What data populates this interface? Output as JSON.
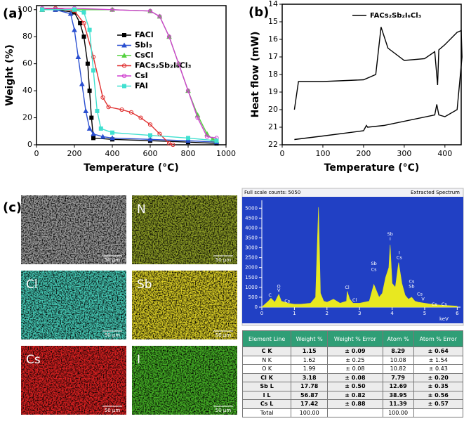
{
  "chart_data": [
    {
      "type": "line",
      "panel": "(a)",
      "xlabel": "Temperature (°C)",
      "ylabel": "Weight (%)",
      "xlim": [
        0,
        1000
      ],
      "xticks": [
        0,
        200,
        400,
        600,
        800,
        1000
      ],
      "ylim": [
        0,
        103
      ],
      "yticks": [
        0,
        20,
        40,
        60,
        80,
        100
      ],
      "series": [
        {
          "name": "FACl",
          "color": "#000000",
          "marker": "square",
          "x": [
            30,
            100,
            200,
            230,
            250,
            270,
            280,
            290,
            300,
            400,
            600,
            800,
            950
          ],
          "values": [
            100,
            100,
            98,
            90,
            80,
            60,
            40,
            20,
            5,
            4,
            3,
            2,
            1
          ]
        },
        {
          "name": "SbI₃",
          "color": "#2a4fd0",
          "marker": "triangle",
          "x": [
            30,
            100,
            180,
            200,
            220,
            240,
            260,
            280,
            300,
            350,
            400,
            600,
            800,
            950
          ],
          "values": [
            100,
            100,
            97,
            85,
            65,
            45,
            25,
            12,
            8,
            6,
            5,
            4,
            3,
            2
          ]
        },
        {
          "name": "CsCl",
          "color": "#55d040",
          "marker": "triangle",
          "x": [
            30,
            200,
            400,
            600,
            650,
            700,
            750,
            800,
            850,
            900,
            930,
            950
          ],
          "values": [
            100,
            100,
            100,
            99,
            95,
            80,
            60,
            40,
            22,
            8,
            4,
            3
          ]
        },
        {
          "name": "FACs₂Sb₂I₆Cl₃",
          "color": "#e03030",
          "marker": "circle",
          "x": [
            30,
            100,
            200,
            250,
            300,
            350,
            380,
            450,
            500,
            550,
            600,
            650,
            700,
            720
          ],
          "values": [
            100,
            101,
            99,
            90,
            65,
            35,
            28,
            26,
            24,
            20,
            15,
            8,
            1,
            0
          ]
        },
        {
          "name": "CsI",
          "color": "#d040d0",
          "marker": "circle",
          "x": [
            30,
            200,
            400,
            600,
            650,
            700,
            750,
            800,
            850,
            900,
            950
          ],
          "values": [
            101,
            101,
            100,
            99,
            95,
            80,
            60,
            40,
            20,
            6,
            5
          ]
        },
        {
          "name": "FAI",
          "color": "#40e0d0",
          "marker": "square",
          "x": [
            30,
            200,
            250,
            280,
            300,
            320,
            340,
            400,
            600,
            800,
            950
          ],
          "values": [
            100,
            100,
            98,
            85,
            55,
            25,
            12,
            9,
            7,
            5,
            3
          ]
        }
      ]
    },
    {
      "type": "line",
      "panel": "(b)",
      "xlabel": "Temperature (°C)",
      "ylabel": "Heat flow (mW)",
      "xlim": [
        0,
        440
      ],
      "xticks": [
        0,
        100,
        200,
        300,
        400
      ],
      "ylim": [
        22,
        14
      ],
      "yticks": [
        14,
        15,
        16,
        17,
        18,
        19,
        20,
        21,
        22
      ],
      "series": [
        {
          "name": "FACs₂Sb₂I₆Cl₃",
          "color": "#000000",
          "x": [
            30,
            40,
            100,
            200,
            230,
            243,
            260,
            300,
            350,
            375,
            382,
            385,
            400,
            430,
            440,
            442,
            430,
            400,
            385,
            380,
            375,
            250,
            210,
            207,
            200,
            100,
            30
          ],
          "values": [
            20,
            18.4,
            18.4,
            18.3,
            18.0,
            15.3,
            16.5,
            17.2,
            17.1,
            16.7,
            18.6,
            16.6,
            16.3,
            15.6,
            15.5,
            17,
            20,
            20.4,
            20.3,
            19.7,
            20.3,
            20.9,
            21.0,
            20.9,
            21.2,
            21.5,
            21.7
          ]
        }
      ]
    },
    {
      "type": "area",
      "title": "Full scale counts: 5050",
      "subtitle": "Extracted Spectrum",
      "xlabel": "keV",
      "color": "#e8e820",
      "xlim": [
        0,
        6.1
      ],
      "xticks": [
        0,
        1,
        2,
        3,
        4,
        5,
        6
      ],
      "ylim": [
        0,
        5400
      ],
      "yticks": [
        0,
        500,
        1000,
        1500,
        2000,
        2500,
        3000,
        3500,
        4000,
        4500,
        5000
      ],
      "x": [
        0,
        0.2,
        0.28,
        0.4,
        0.52,
        0.6,
        0.8,
        1.0,
        1.2,
        1.5,
        1.65,
        1.74,
        1.8,
        1.9,
        2.0,
        2.2,
        2.4,
        2.6,
        2.62,
        2.7,
        2.8,
        3.0,
        3.3,
        3.44,
        3.6,
        3.7,
        3.8,
        3.9,
        3.94,
        4.0,
        4.1,
        4.2,
        4.3,
        4.4,
        4.5,
        4.6,
        4.7,
        4.8,
        5.0,
        5.2,
        5.5,
        6.0
      ],
      "values": [
        0,
        300,
        450,
        250,
        650,
        300,
        200,
        150,
        150,
        200,
        500,
        5050,
        700,
        300,
        250,
        400,
        200,
        300,
        800,
        400,
        200,
        200,
        300,
        1150,
        500,
        700,
        1500,
        2000,
        3150,
        1200,
        1000,
        2250,
        1200,
        600,
        400,
        500,
        300,
        250,
        200,
        150,
        100,
        50
      ],
      "annotations": [
        {
          "text": "C",
          "x": 0.25,
          "y": 600
        },
        {
          "text": "V",
          "x": 0.52,
          "y": 850
        },
        {
          "text": "O",
          "x": 0.52,
          "y": 1050
        },
        {
          "text": "Cs",
          "x": 0.78,
          "y": 300
        },
        {
          "text": "Cl",
          "x": 2.62,
          "y": 1000
        },
        {
          "text": "Cl",
          "x": 2.85,
          "y": 350
        },
        {
          "text": "Cs",
          "x": 3.44,
          "y": 1900
        },
        {
          "text": "Sb",
          "x": 3.44,
          "y": 2200
        },
        {
          "text": "I",
          "x": 3.94,
          "y": 3450
        },
        {
          "text": "Sb",
          "x": 3.94,
          "y": 3700
        },
        {
          "text": "Cs",
          "x": 4.22,
          "y": 2500
        },
        {
          "text": "I",
          "x": 4.22,
          "y": 2750
        },
        {
          "text": "Sb",
          "x": 4.6,
          "y": 1050
        },
        {
          "text": "Cs",
          "x": 4.6,
          "y": 1300
        },
        {
          "text": "Cs",
          "x": 4.85,
          "y": 650
        },
        {
          "text": "V",
          "x": 4.95,
          "y": 400
        },
        {
          "text": "Cs",
          "x": 5.3,
          "y": 150
        },
        {
          "text": "Cs",
          "x": 5.6,
          "y": 150
        }
      ]
    }
  ],
  "figure_c": {
    "label": "(c)",
    "maps": [
      {
        "color": "#9a9a9a",
        "scale_bar": "50 µm"
      },
      {
        "label": "N",
        "color": "#8a9a25",
        "scale_bar": "50 µm"
      },
      {
        "label": "Cl",
        "color": "#45c8b4",
        "scale_bar": "50 µm"
      },
      {
        "label": "Sb",
        "color": "#d8cc25",
        "scale_bar": "50 µm"
      },
      {
        "label": "Cs",
        "color": "#d82020",
        "scale_bar": "50 µm"
      },
      {
        "label": "I",
        "color": "#45b025",
        "scale_bar": "50 µm"
      }
    ]
  },
  "table": {
    "header": [
      "Element Line",
      "Weight %",
      "Weight % Error",
      "Atom %",
      "Atom % Error"
    ],
    "rows": [
      [
        "C K",
        "1.15",
        "± 0.09",
        "8.29",
        "± 0.64"
      ],
      [
        "N K",
        "1.62",
        "± 0.25",
        "10.08",
        "± 1.54"
      ],
      [
        "O K",
        "1.99",
        "± 0.08",
        "10.82",
        "± 0.43"
      ],
      [
        "Cl K",
        "3.18",
        "± 0.08",
        "7.79",
        "± 0.20"
      ],
      [
        "Sb L",
        "17.78",
        "± 0.50",
        "12.69",
        "± 0.35"
      ],
      [
        "I L",
        "56.87",
        "± 0.82",
        "38.95",
        "± 0.56"
      ],
      [
        "Cs L",
        "17.42",
        "± 0.88",
        "11.39",
        "± 0.57"
      ],
      [
        "Total",
        "100.00",
        "",
        "100.00",
        ""
      ]
    ]
  }
}
